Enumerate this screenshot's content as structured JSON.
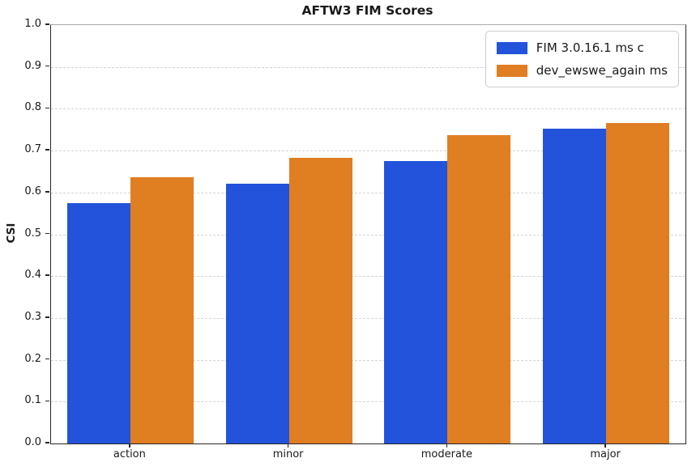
{
  "chart_data": {
    "type": "bar",
    "title": "AFTW3 FIM Scores",
    "xlabel": "",
    "ylabel": "CSI",
    "categories": [
      "action",
      "minor",
      "moderate",
      "major"
    ],
    "series": [
      {
        "name": "FIM 3.0.16.1 ms c",
        "color": "#2353db",
        "values": [
          0.575,
          0.621,
          0.676,
          0.753
        ]
      },
      {
        "name": "dev_ewswe_again ms",
        "color": "#e07e22",
        "values": [
          0.636,
          0.682,
          0.737,
          0.766
        ]
      }
    ],
    "ylim": [
      0.0,
      1.0
    ],
    "y_ticks": [
      "0.0",
      "0.1",
      "0.2",
      "0.3",
      "0.4",
      "0.5",
      "0.6",
      "0.7",
      "0.8",
      "0.9",
      "1.0"
    ],
    "grid": "horizontal-dashed",
    "grid_color": "#d4d4d4",
    "legend_position": "upper-right",
    "background_color": "#ffffff"
  }
}
